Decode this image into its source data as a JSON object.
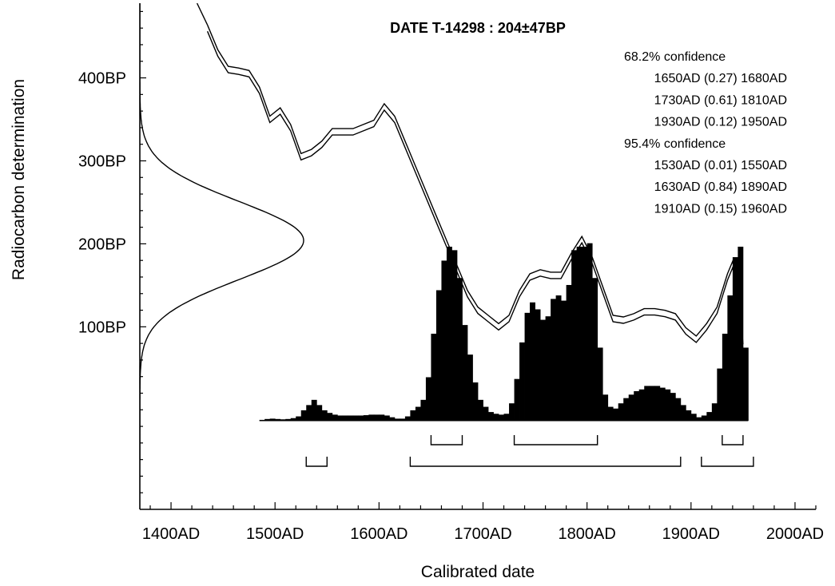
{
  "chart_data": {
    "type": "area",
    "title": "DATE T-14298 : 204±47BP",
    "xlabel": "Calibrated date",
    "ylabel": "Radiocarbon determination",
    "xlim": [
      1370,
      2020
    ],
    "ylim": [
      -120,
      490
    ],
    "x_tick_labels": [
      "1400AD",
      "1500AD",
      "1600AD",
      "1700AD",
      "1800AD",
      "1900AD",
      "2000AD"
    ],
    "x_tick_values": [
      1400,
      1500,
      1600,
      1700,
      1800,
      1900,
      2000
    ],
    "y_tick_labels": [
      "100BP",
      "200BP",
      "300BP",
      "400BP"
    ],
    "y_tick_values": [
      100,
      200,
      300,
      400
    ],
    "radiocarbon_date": {
      "mean_bp": 204,
      "sigma": 47
    },
    "annotations": [
      "68.2% confidence",
      "1650AD (0.27) 1680AD",
      "1730AD (0.61) 1810AD",
      "1930AD (0.12) 1950AD",
      "95.4% confidence",
      "1530AD (0.01) 1550AD",
      "1630AD (0.84) 1890AD",
      "1910AD (0.15) 1960AD"
    ],
    "ranges_68": [
      [
        1650,
        1680
      ],
      [
        1730,
        1810
      ],
      [
        1930,
        1950
      ]
    ],
    "ranges_95": [
      [
        1530,
        1550
      ],
      [
        1630,
        1890
      ],
      [
        1910,
        1960
      ]
    ],
    "calibration_curve": {
      "x": [
        1435,
        1445,
        1455,
        1465,
        1475,
        1485,
        1495,
        1505,
        1515,
        1525,
        1535,
        1545,
        1555,
        1565,
        1575,
        1585,
        1595,
        1605,
        1615,
        1625,
        1635,
        1645,
        1655,
        1665,
        1675,
        1685,
        1695,
        1705,
        1715,
        1725,
        1735,
        1745,
        1755,
        1765,
        1775,
        1785,
        1795,
        1805,
        1815,
        1825,
        1835,
        1845,
        1855,
        1865,
        1875,
        1885,
        1895,
        1905,
        1915,
        1925,
        1935,
        1940,
        1945,
        1950
      ],
      "y": [
        460,
        430,
        410,
        408,
        405,
        385,
        350,
        360,
        340,
        305,
        310,
        320,
        335,
        335,
        335,
        340,
        345,
        365,
        350,
        320,
        290,
        260,
        230,
        200,
        170,
        140,
        120,
        110,
        100,
        110,
        140,
        160,
        165,
        162,
        162,
        185,
        205,
        180,
        145,
        110,
        108,
        112,
        118,
        118,
        116,
        112,
        95,
        85,
        100,
        120,
        160,
        175,
        150,
        75
      ]
    },
    "probability_histogram": {
      "bin_width": 5,
      "x": [
        1485,
        1490,
        1495,
        1500,
        1505,
        1510,
        1515,
        1520,
        1525,
        1530,
        1535,
        1540,
        1545,
        1550,
        1555,
        1560,
        1565,
        1570,
        1575,
        1580,
        1585,
        1590,
        1595,
        1600,
        1605,
        1610,
        1615,
        1620,
        1625,
        1630,
        1635,
        1640,
        1645,
        1650,
        1655,
        1660,
        1665,
        1670,
        1675,
        1680,
        1685,
        1690,
        1695,
        1700,
        1705,
        1710,
        1715,
        1720,
        1725,
        1730,
        1735,
        1740,
        1745,
        1750,
        1755,
        1760,
        1765,
        1770,
        1775,
        1780,
        1785,
        1790,
        1795,
        1800,
        1805,
        1810,
        1815,
        1820,
        1825,
        1830,
        1835,
        1840,
        1845,
        1850,
        1855,
        1860,
        1865,
        1870,
        1875,
        1880,
        1885,
        1890,
        1895,
        1900,
        1905,
        1910,
        1915,
        1920,
        1925,
        1930,
        1935,
        1940,
        1945,
        1950
      ],
      "y": [
        0.005,
        0.01,
        0.012,
        0.01,
        0.008,
        0.01,
        0.015,
        0.025,
        0.06,
        0.09,
        0.12,
        0.09,
        0.06,
        0.045,
        0.035,
        0.03,
        0.03,
        0.03,
        0.03,
        0.03,
        0.032,
        0.035,
        0.035,
        0.035,
        0.03,
        0.02,
        0.012,
        0.012,
        0.025,
        0.06,
        0.08,
        0.12,
        0.25,
        0.5,
        0.75,
        0.92,
        1.0,
        0.98,
        0.82,
        0.55,
        0.38,
        0.22,
        0.12,
        0.08,
        0.05,
        0.04,
        0.035,
        0.04,
        0.1,
        0.24,
        0.45,
        0.62,
        0.68,
        0.64,
        0.58,
        0.6,
        0.7,
        0.72,
        0.69,
        0.78,
        0.98,
        1.0,
        1.0,
        1.02,
        0.82,
        0.42,
        0.15,
        0.08,
        0.07,
        0.1,
        0.13,
        0.15,
        0.17,
        0.18,
        0.2,
        0.2,
        0.2,
        0.19,
        0.18,
        0.16,
        0.13,
        0.09,
        0.06,
        0.04,
        0.02,
        0.03,
        0.05,
        0.1,
        0.3,
        0.5,
        0.72,
        0.94,
        1.0,
        0.42
      ]
    },
    "radiocarbon_gaussian": {
      "mean": 204,
      "sd": 47
    }
  }
}
